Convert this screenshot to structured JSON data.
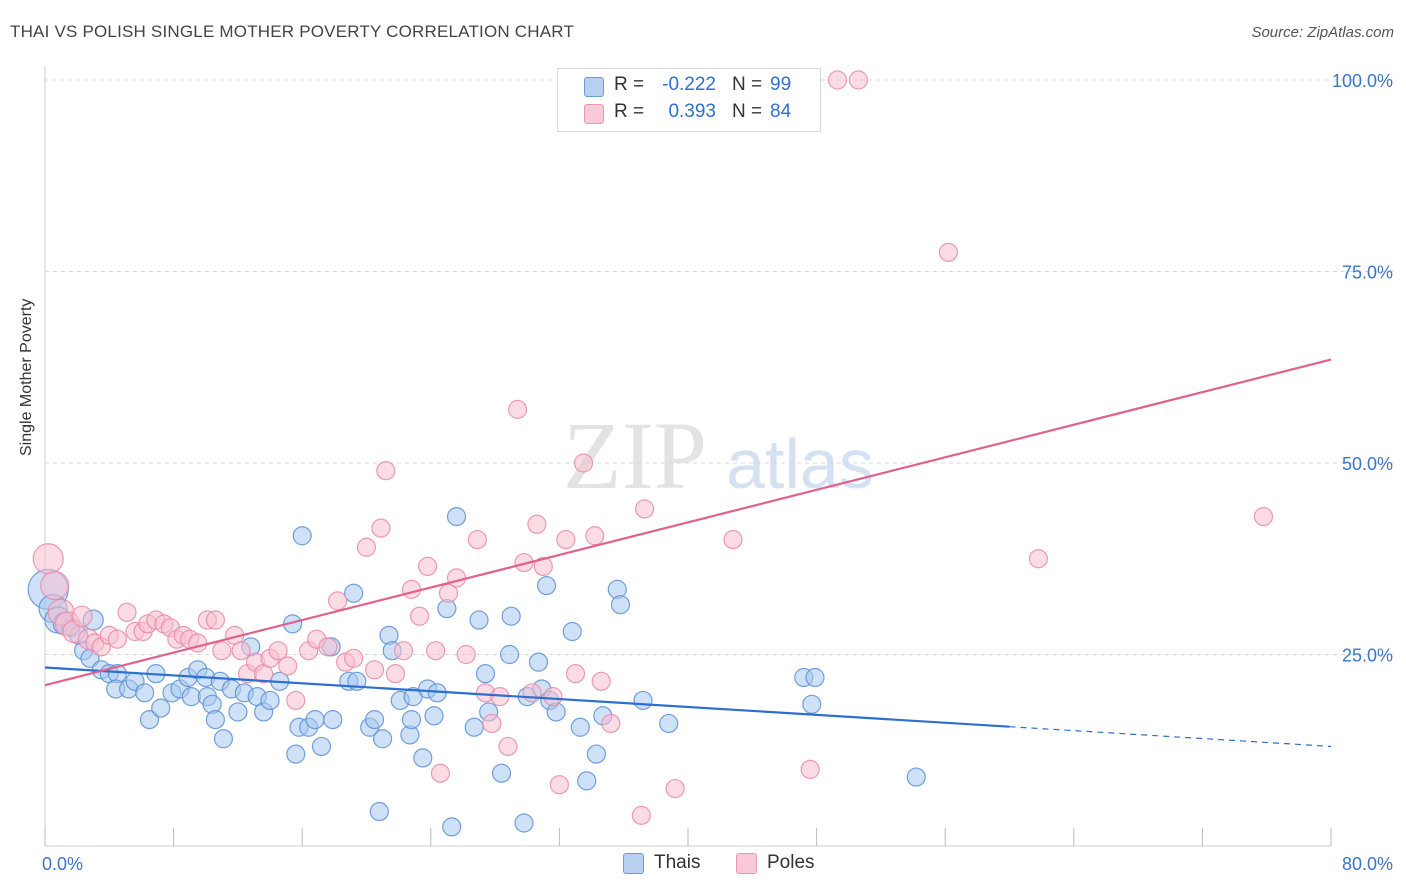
{
  "title": "THAI VS POLISH SINGLE MOTHER POVERTY CORRELATION CHART",
  "source": "Source: ZipAtlas.com",
  "watermark": {
    "zip": "ZIP",
    "atlas": "atlas"
  },
  "legend": {
    "r_label": "R =",
    "n_label": "N =",
    "rows": [
      {
        "r": "-0.222",
        "n": "99"
      },
      {
        "r": "0.393",
        "n": "84"
      }
    ]
  },
  "bottom_legend": [
    "Thais",
    "Poles"
  ],
  "colors": {
    "thais_fill": "#a8c8ef",
    "thais_stroke": "#5b8fd6",
    "thais_line": "#2c6fce",
    "poles_fill": "#f7bfd0",
    "poles_stroke": "#e88aa8",
    "poles_line": "#e0628c",
    "tick_label": "#3b76c8",
    "grid": "#d9d9d9"
  },
  "chart_data": {
    "type": "scatter",
    "title": "THAI VS POLISH SINGLE MOTHER POVERTY CORRELATION CHART",
    "xlabel": "",
    "ylabel": "Single Mother Poverty",
    "xlim": [
      0,
      80
    ],
    "ylim": [
      0,
      100
    ],
    "x_tick_labels": [
      "0.0%",
      "80.0%"
    ],
    "y_tick_labels": [
      "25.0%",
      "50.0%",
      "75.0%",
      "100.0%"
    ],
    "y_ticks": [
      25,
      50,
      75,
      100
    ],
    "grid": true,
    "legend_position": "top-center",
    "series": [
      {
        "name": "Thais",
        "R": -0.222,
        "N": 99,
        "trend": {
          "x_solid": [
            0,
            60
          ],
          "x_dashed": [
            60,
            80
          ],
          "y_at_0": 23.3,
          "y_at_80": 13.0
        },
        "points": [
          [
            0.2,
            33.5,
            20
          ],
          [
            0.5,
            31.0,
            14
          ],
          [
            0.8,
            29.5,
            13
          ],
          [
            1.2,
            29.0,
            11
          ],
          [
            1.6,
            28.5,
            9
          ],
          [
            2.1,
            27.5,
            9
          ],
          [
            3.0,
            29.5,
            10
          ],
          [
            2.4,
            25.5,
            9
          ],
          [
            2.8,
            24.5,
            9
          ],
          [
            3.5,
            23.0,
            9
          ],
          [
            4.0,
            22.5,
            9
          ],
          [
            4.5,
            22.5,
            9
          ],
          [
            4.4,
            20.5,
            9
          ],
          [
            5.2,
            20.5,
            9
          ],
          [
            5.6,
            21.5,
            9
          ],
          [
            6.2,
            20.0,
            9
          ],
          [
            6.9,
            22.5,
            9
          ],
          [
            6.5,
            16.5,
            9
          ],
          [
            7.2,
            18.0,
            9
          ],
          [
            7.9,
            20.0,
            9
          ],
          [
            8.4,
            20.5,
            9
          ],
          [
            8.9,
            22.0,
            9
          ],
          [
            9.1,
            19.5,
            9
          ],
          [
            9.5,
            23.0,
            9
          ],
          [
            10.0,
            22.0,
            9
          ],
          [
            10.1,
            19.5,
            9
          ],
          [
            10.4,
            18.5,
            9
          ],
          [
            10.6,
            16.5,
            9
          ],
          [
            10.9,
            21.5,
            9
          ],
          [
            11.1,
            14.0,
            9
          ],
          [
            11.6,
            20.5,
            9
          ],
          [
            12.0,
            17.5,
            9
          ],
          [
            12.4,
            20.0,
            9
          ],
          [
            12.8,
            26.0,
            9
          ],
          [
            13.2,
            19.5,
            9
          ],
          [
            13.6,
            17.5,
            9
          ],
          [
            14.0,
            19.0,
            9
          ],
          [
            14.6,
            21.5,
            9
          ],
          [
            15.4,
            29.0,
            9
          ],
          [
            15.6,
            12.0,
            9
          ],
          [
            15.8,
            15.5,
            9
          ],
          [
            16.4,
            15.5,
            9
          ],
          [
            16.0,
            40.5,
            9
          ],
          [
            16.8,
            16.5,
            9
          ],
          [
            17.2,
            13.0,
            9
          ],
          [
            17.8,
            26.0,
            9
          ],
          [
            17.9,
            16.5,
            9
          ],
          [
            18.9,
            21.5,
            9
          ],
          [
            19.2,
            33.0,
            9
          ],
          [
            19.4,
            21.5,
            9
          ],
          [
            20.2,
            15.5,
            9
          ],
          [
            20.5,
            16.5,
            9
          ],
          [
            20.8,
            4.5,
            9
          ],
          [
            21.0,
            14.0,
            9
          ],
          [
            21.4,
            27.5,
            9
          ],
          [
            21.6,
            25.5,
            9
          ],
          [
            22.1,
            19.0,
            9
          ],
          [
            22.7,
            14.5,
            9
          ],
          [
            22.8,
            16.5,
            9
          ],
          [
            22.9,
            19.5,
            9
          ],
          [
            23.5,
            11.5,
            9
          ],
          [
            23.8,
            20.5,
            9
          ],
          [
            24.2,
            17.0,
            9
          ],
          [
            24.4,
            20.0,
            9
          ],
          [
            25.0,
            31.0,
            9
          ],
          [
            25.3,
            2.5,
            9
          ],
          [
            25.6,
            43.0,
            9
          ],
          [
            26.7,
            15.5,
            9
          ],
          [
            27.0,
            29.5,
            9
          ],
          [
            27.4,
            22.5,
            9
          ],
          [
            27.6,
            17.5,
            9
          ],
          [
            28.4,
            9.5,
            9
          ],
          [
            28.9,
            25.0,
            9
          ],
          [
            29.0,
            30.0,
            9
          ],
          [
            29.8,
            3.0,
            9
          ],
          [
            30.0,
            19.5,
            9
          ],
          [
            30.7,
            24.0,
            9
          ],
          [
            30.9,
            20.5,
            9
          ],
          [
            31.2,
            34.0,
            9
          ],
          [
            31.4,
            19.0,
            9
          ],
          [
            31.8,
            17.5,
            9
          ],
          [
            32.8,
            28.0,
            9
          ],
          [
            33.3,
            15.5,
            9
          ],
          [
            33.7,
            8.5,
            9
          ],
          [
            34.3,
            12.0,
            9
          ],
          [
            34.7,
            17.0,
            9
          ],
          [
            35.6,
            33.5,
            9
          ],
          [
            35.8,
            31.5,
            9
          ],
          [
            37.2,
            19.0,
            9
          ],
          [
            38.8,
            16.0,
            9
          ],
          [
            47.2,
            22.0,
            9
          ],
          [
            47.7,
            18.5,
            9
          ],
          [
            47.9,
            22.0,
            9
          ],
          [
            54.2,
            9.0,
            9
          ]
        ]
      },
      {
        "name": "Poles",
        "R": 0.393,
        "N": 84,
        "trend": {
          "x_solid": [
            0,
            80
          ],
          "y_at_0": 21.0,
          "y_at_80": 63.5
        },
        "points": [
          [
            0.2,
            37.5,
            15
          ],
          [
            0.6,
            34.0,
            14
          ],
          [
            1.0,
            30.5,
            13
          ],
          [
            1.4,
            29.0,
            12
          ],
          [
            1.8,
            28.0,
            11
          ],
          [
            2.3,
            30.0,
            10
          ],
          [
            2.7,
            27.0,
            10
          ],
          [
            3.1,
            26.5,
            9
          ],
          [
            3.5,
            26.0,
            9
          ],
          [
            4.0,
            27.5,
            9
          ],
          [
            4.5,
            27.0,
            9
          ],
          [
            5.1,
            30.5,
            9
          ],
          [
            5.6,
            28.0,
            9
          ],
          [
            6.1,
            28.0,
            9
          ],
          [
            6.4,
            29.0,
            9
          ],
          [
            6.9,
            29.5,
            9
          ],
          [
            7.4,
            29.0,
            9
          ],
          [
            7.8,
            28.5,
            9
          ],
          [
            8.2,
            27.0,
            9
          ],
          [
            8.6,
            27.5,
            9
          ],
          [
            9.0,
            27.0,
            9
          ],
          [
            9.5,
            26.5,
            9
          ],
          [
            10.1,
            29.5,
            9
          ],
          [
            10.6,
            29.5,
            9
          ],
          [
            11.0,
            25.5,
            9
          ],
          [
            11.8,
            27.5,
            9
          ],
          [
            12.2,
            25.5,
            9
          ],
          [
            12.6,
            22.5,
            9
          ],
          [
            13.1,
            24.0,
            9
          ],
          [
            13.6,
            22.5,
            9
          ],
          [
            14.0,
            24.5,
            9
          ],
          [
            14.5,
            25.5,
            9
          ],
          [
            15.1,
            23.5,
            9
          ],
          [
            15.6,
            19.0,
            9
          ],
          [
            16.4,
            25.5,
            9
          ],
          [
            16.9,
            27.0,
            9
          ],
          [
            17.6,
            26.0,
            9
          ],
          [
            18.2,
            32.0,
            9
          ],
          [
            18.7,
            24.0,
            9
          ],
          [
            19.2,
            24.5,
            9
          ],
          [
            20.0,
            39.0,
            9
          ],
          [
            20.5,
            23.0,
            9
          ],
          [
            20.9,
            41.5,
            9
          ],
          [
            21.2,
            49.0,
            9
          ],
          [
            21.8,
            22.5,
            9
          ],
          [
            22.3,
            25.5,
            9
          ],
          [
            22.8,
            33.5,
            9
          ],
          [
            23.3,
            30.0,
            9
          ],
          [
            23.8,
            36.5,
            9
          ],
          [
            24.3,
            25.5,
            9
          ],
          [
            24.6,
            9.5,
            9
          ],
          [
            25.1,
            33.0,
            9
          ],
          [
            25.6,
            35.0,
            9
          ],
          [
            26.2,
            25.0,
            9
          ],
          [
            26.9,
            40.0,
            9
          ],
          [
            27.4,
            20.0,
            9
          ],
          [
            27.8,
            16.0,
            9
          ],
          [
            28.3,
            19.5,
            9
          ],
          [
            28.8,
            13.0,
            9
          ],
          [
            29.4,
            57.0,
            9
          ],
          [
            29.8,
            37.0,
            9
          ],
          [
            30.3,
            20.0,
            9
          ],
          [
            30.6,
            42.0,
            9
          ],
          [
            31.0,
            36.5,
            9
          ],
          [
            31.6,
            19.5,
            9
          ],
          [
            32.0,
            8.0,
            9
          ],
          [
            32.4,
            40.0,
            9
          ],
          [
            33.0,
            22.5,
            9
          ],
          [
            33.5,
            50.0,
            9
          ],
          [
            34.2,
            40.5,
            9
          ],
          [
            34.6,
            21.5,
            9
          ],
          [
            35.2,
            16.0,
            9
          ],
          [
            36.0,
            100.0,
            9
          ],
          [
            37.1,
            4.0,
            9
          ],
          [
            37.3,
            44.0,
            9
          ],
          [
            39.2,
            7.5,
            9
          ],
          [
            42.8,
            40.0,
            9
          ],
          [
            47.6,
            10.0,
            9
          ],
          [
            49.3,
            100.0,
            9
          ],
          [
            50.6,
            100.0,
            9
          ],
          [
            56.2,
            77.5,
            9
          ],
          [
            61.8,
            37.5,
            9
          ],
          [
            75.8,
            43.0,
            9
          ]
        ]
      }
    ]
  }
}
